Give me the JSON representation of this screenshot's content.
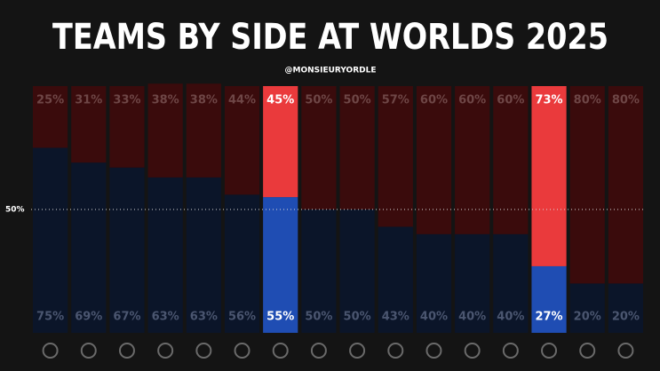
{
  "chart_data": {
    "type": "stacked_bar",
    "title": "TEAMS BY SIDE AT WORLDS 2025",
    "subtitle": "@MONSIEURYORDLE",
    "categories": [
      null,
      null,
      null,
      null,
      null,
      null,
      null,
      null,
      null,
      null,
      null,
      null,
      null,
      null,
      null,
      null
    ],
    "series": [
      {
        "values": [
          75,
          69,
          67,
          63,
          63,
          56,
          55,
          50,
          50,
          43,
          40,
          40,
          40,
          27,
          20,
          20
        ],
        "value_labels": [
          "75%",
          "69%",
          "67%",
          "63%",
          "63%",
          "56%",
          "55%",
          "50%",
          "50%",
          "43%",
          "40%",
          "40%",
          "40%",
          "27%",
          "20%",
          "20%"
        ],
        "colors": [
          "#0b1529",
          "#0b1529",
          "#0b1529",
          "#0b1529",
          "#0b1529",
          "#0b1529",
          "#1f4db3",
          "#0b1529",
          "#0b1529",
          "#0b1529",
          "#0b1529",
          "#0b1529",
          "#0b1529",
          "#1f4db3",
          "#0b1529",
          "#0b1529"
        ],
        "label_colors": [
          "#4b5670",
          "#4b5670",
          "#4b5670",
          "#4b5670",
          "#4b5670",
          "#4b5670",
          "#ffffff",
          "#4b5670",
          "#4b5670",
          "#4b5670",
          "#4b5670",
          "#4b5670",
          "#4b5670",
          "#ffffff",
          "#4b5670",
          "#4b5670"
        ]
      },
      {
        "values": [
          25,
          31,
          33,
          38,
          38,
          44,
          45,
          50,
          50,
          57,
          60,
          60,
          60,
          73,
          80,
          80
        ],
        "value_labels": [
          "25%",
          "31%",
          "33%",
          "38%",
          "38%",
          "44%",
          "45%",
          "50%",
          "50%",
          "57%",
          "60%",
          "60%",
          "60%",
          "73%",
          "80%",
          "80%"
        ],
        "colors": [
          "#3a0b0c",
          "#3a0b0c",
          "#3a0b0c",
          "#3a0b0c",
          "#3a0b0c",
          "#3a0b0c",
          "#ea3a3c",
          "#3a0b0c",
          "#3a0b0c",
          "#3a0b0c",
          "#3a0b0c",
          "#3a0b0c",
          "#3a0b0c",
          "#ea3a3c",
          "#3a0b0c",
          "#3a0b0c"
        ],
        "label_colors": [
          "#6e4646",
          "#6e4646",
          "#6e4646",
          "#6e4646",
          "#6e4646",
          "#6e4646",
          "#ffffff",
          "#6e4646",
          "#6e4646",
          "#6e4646",
          "#6e4646",
          "#6e4646",
          "#6e4646",
          "#ffffff",
          "#6e4646",
          "#6e4646"
        ]
      }
    ],
    "ylim": [
      0,
      100
    ],
    "yticks": [
      {
        "value": 50,
        "label": "50%"
      }
    ],
    "grid": true
  }
}
